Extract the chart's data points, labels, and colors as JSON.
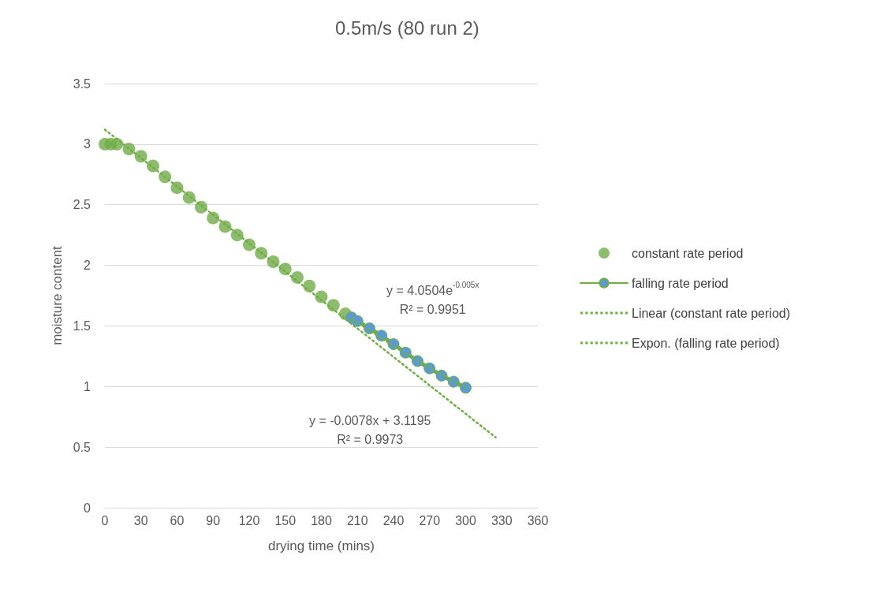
{
  "chart_data": {
    "type": "scatter",
    "title": "0.5m/s (80 run 2)",
    "xlabel": "drying time (mins)",
    "ylabel": "moisture content",
    "xlim": [
      0,
      360
    ],
    "xticks": [
      0,
      30,
      60,
      90,
      120,
      150,
      180,
      210,
      240,
      270,
      300,
      330,
      360
    ],
    "ylim": [
      0,
      3.5
    ],
    "yticks": [
      0,
      0.5,
      1,
      1.5,
      2,
      2.5,
      3,
      3.5
    ],
    "grid": "y",
    "legend": "right",
    "marker": "circle",
    "series": [
      {
        "name": "constant rate period",
        "color": "#70ad47",
        "x": [
          0,
          5,
          10,
          20,
          30,
          40,
          50,
          60,
          70,
          80,
          90,
          100,
          110,
          120,
          130,
          140,
          150,
          160,
          170,
          180,
          190,
          200
        ],
        "values": [
          3.0,
          3.0,
          3.0,
          2.96,
          2.9,
          2.82,
          2.73,
          2.64,
          2.56,
          2.48,
          2.39,
          2.32,
          2.25,
          2.17,
          2.1,
          2.03,
          1.97,
          1.9,
          1.83,
          1.74,
          1.67,
          1.6
        ]
      },
      {
        "name": "falling rate period",
        "type": "line",
        "color": "#70ad47",
        "x": [
          205,
          210,
          220,
          230,
          240,
          250,
          260,
          270,
          280,
          290,
          300
        ],
        "values": [
          1.57,
          1.54,
          1.48,
          1.42,
          1.35,
          1.28,
          1.21,
          1.15,
          1.09,
          1.04,
          0.99
        ]
      },
      {
        "name": "Linear (constant rate period)",
        "type": "line",
        "line_style": "dotted",
        "marker": "none",
        "color": "#70ad47",
        "x": [
          0,
          325
        ],
        "values": [
          3.12,
          0.58
        ]
      },
      {
        "name": "Expon. (falling rate period)",
        "type": "line",
        "line_style": "dotted",
        "marker": "none",
        "color": "#70ad47",
        "x": [
          205,
          250,
          300
        ],
        "values": [
          1.56,
          1.27,
          0.99
        ]
      }
    ],
    "annotations": [
      "y = 4.0504e$^{-0.005x}$\nR² = 0.9951",
      "y = -0.0078x + 3.1195\nR² = 0.9973"
    ]
  }
}
